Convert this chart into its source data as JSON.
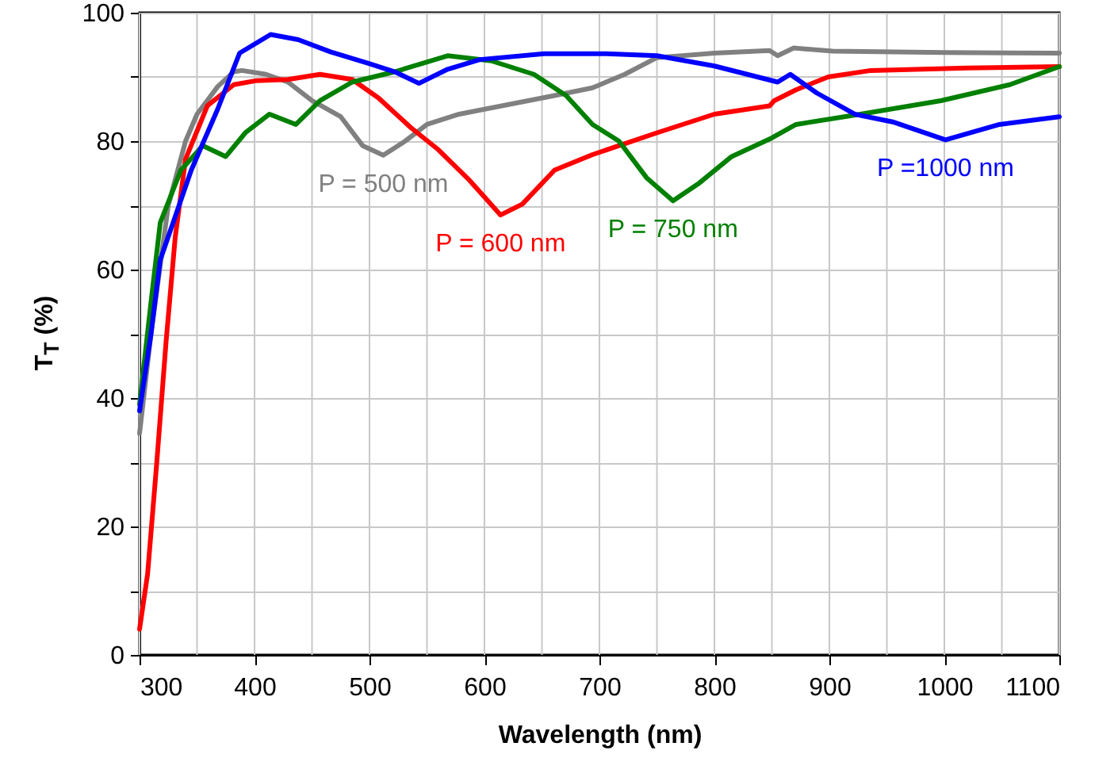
{
  "chart_data": {
    "type": "line",
    "xlabel": "Wavelength (nm)",
    "ylabel": "T$_{T}$ (%)",
    "xlim": [
      300,
      1100
    ],
    "ylim": [
      0,
      100
    ],
    "xticks": [
      300,
      {
        "value": 350,
        "label": null
      },
      400,
      {
        "value": 450,
        "label": null
      },
      500,
      {
        "value": 550,
        "label": null
      },
      600,
      {
        "value": 650,
        "label": null
      },
      700,
      {
        "value": 750,
        "label": null
      },
      800,
      {
        "value": 850,
        "label": null
      },
      900,
      {
        "value": 950,
        "label": null
      },
      1000,
      {
        "value": 1050,
        "label": null
      },
      1100
    ],
    "yticks": [
      0,
      {
        "value": 10,
        "label": null
      },
      20,
      {
        "value": 30,
        "label": null
      },
      40,
      {
        "value": 50,
        "label": null
      },
      60,
      {
        "value": 70,
        "label": null
      },
      80,
      {
        "value": 90,
        "label": null
      },
      100
    ],
    "grid": true,
    "line_style": "solid",
    "marker": "none",
    "series": [
      {
        "color": "#808080",
        "x": [
          300,
          310,
          325,
          340,
          350,
          368,
          382,
          389,
          410,
          429,
          450,
          475,
          494,
          512,
          531,
          550,
          578,
          615,
          661,
          694,
          722,
          750,
          800,
          848,
          855,
          869,
          903,
          1000,
          1100
        ],
        "values": [
          34.5,
          50,
          70,
          80,
          84.2,
          88.5,
          90.8,
          91,
          90.4,
          89.2,
          86.3,
          83.8,
          79.3,
          77.8,
          80,
          82.6,
          84.2,
          85.5,
          87.1,
          88.3,
          90.4,
          93,
          93.7,
          94.1,
          93.3,
          94.5,
          94,
          93.8,
          93.7
        ]
      },
      {
        "color": "#ff0000",
        "x": [
          300,
          307,
          315,
          323,
          331,
          340,
          359,
          382,
          401,
          429,
          457,
          485,
          508,
          536,
          559,
          587,
          614,
          633,
          661,
          694,
          750,
          800,
          848,
          852,
          871,
          899,
          936,
          1020,
          1100
        ],
        "values": [
          4,
          12.6,
          30,
          48.6,
          65,
          77.2,
          85.5,
          88.8,
          89.4,
          89.6,
          90.4,
          89.6,
          86.7,
          82.1,
          78.8,
          73.9,
          68.5,
          70.2,
          75.5,
          77.9,
          81.3,
          84.2,
          85.5,
          86.3,
          88,
          90,
          91,
          91.4,
          91.6
        ]
      },
      {
        "color": "#008000",
        "x": [
          300,
          310,
          318,
          336,
          355,
          375,
          392,
          413,
          436,
          457,
          485,
          522,
          568,
          606,
          643,
          671,
          694,
          717,
          741,
          764,
          787,
          815,
          850,
          871,
          927,
          997,
          1057,
          1100
        ],
        "values": [
          39,
          55,
          67.3,
          75.5,
          79.3,
          77.6,
          81.3,
          84.2,
          82.6,
          86.3,
          89.2,
          90.8,
          93.3,
          92.5,
          90.4,
          87.1,
          82.6,
          80,
          74.3,
          70.7,
          73.5,
          77.6,
          80.5,
          82.6,
          84.2,
          86.3,
          88.8,
          91.6
        ]
      },
      {
        "color": "#0000ff",
        "x": [
          300,
          310,
          318,
          345,
          368,
          387,
          414,
          438,
          466,
          499,
          522,
          543,
          568,
          596,
          652,
          706,
          750,
          800,
          855,
          866,
          889,
          922,
          955,
          1001,
          1048,
          1100
        ],
        "values": [
          38,
          50,
          61.5,
          75.5,
          85,
          93.7,
          96.6,
          95.8,
          93.9,
          92.1,
          90.8,
          89,
          91.2,
          92.7,
          93.6,
          93.6,
          93.3,
          91.7,
          89.2,
          90.4,
          87.5,
          84.2,
          83,
          80.2,
          82.6,
          83.8
        ]
      }
    ],
    "annotations": [
      "P = 500 nm",
      "P = 600 nm",
      "P = 750 nm",
      "P =1000 nm"
    ]
  }
}
